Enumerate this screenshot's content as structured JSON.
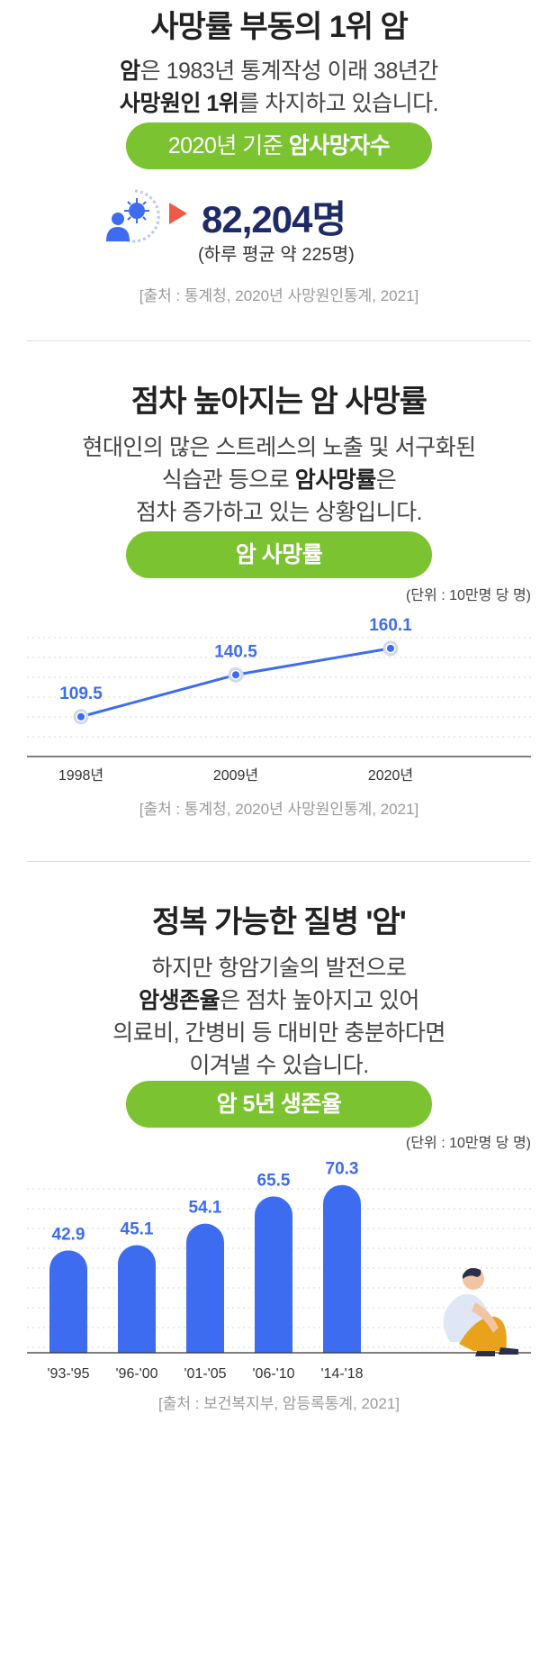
{
  "section1": {
    "title": "사망률 부동의 1위 암",
    "desc_line1_bold": "암",
    "desc_line1_rest": "은 1983년 통계작성 이래 38년간",
    "desc_line2_bold": "사망원인 1위",
    "desc_line2_rest": "를 차지하고 있습니다.",
    "pill_normal": "2020년 기준 ",
    "pill_bold": "암사망자수",
    "stat_value": "82,204명",
    "stat_sub": "(하루 평균 약 225명)",
    "source": "[출처 : 통계청, 2020년 사망원인통계, 2021]"
  },
  "section2": {
    "title": "점차 높아지는 암 사망률",
    "desc_line1": "현대인의 많은 스트레스의 노출 및 서구화된",
    "desc_line2_pre": "식습관 등으로 ",
    "desc_line2_bold": "암사망률",
    "desc_line2_post": "은",
    "desc_line3": "점차 증가하고 있는 상황입니다.",
    "pill": "암 사망률",
    "unit": "(단위 : 10만명 당 명)",
    "source": "[출처 : 통계청, 2020년 사망원인통계, 2021]"
  },
  "section3": {
    "title": "정복 가능한 질병 '암'",
    "desc_line1": "하지만 항암기술의 발전으로",
    "desc_line2_bold": "암생존율",
    "desc_line2_rest": "은 점차 높아지고 있어",
    "desc_line3": "의료비, 간병비 등 대비만 충분하다면",
    "desc_line4": "이겨낼 수 있습니다.",
    "pill": "암 5년 생존율",
    "unit": "(단위 : 10만명 당 명)",
    "source": "[출처 : 보건복지부, 암등록통계, 2021]"
  },
  "colors": {
    "accent_green": "#7cc331",
    "chart_blue": "#3d6cf0",
    "navy": "#1f2b66",
    "arrow_red": "#ef5a46"
  },
  "chart_data": [
    {
      "type": "line",
      "categories": [
        "1998년",
        "2009년",
        "2020년"
      ],
      "values": [
        109.5,
        140.5,
        160.1
      ],
      "ylim": [
        80,
        180
      ]
    },
    {
      "type": "bar",
      "categories": [
        "'93-'95",
        "'96-'00",
        "'01-'05",
        "'06-'10",
        "'14-'18"
      ],
      "values": [
        42.9,
        45.1,
        54.1,
        65.5,
        70.3
      ],
      "ylim": [
        0,
        80
      ]
    }
  ]
}
